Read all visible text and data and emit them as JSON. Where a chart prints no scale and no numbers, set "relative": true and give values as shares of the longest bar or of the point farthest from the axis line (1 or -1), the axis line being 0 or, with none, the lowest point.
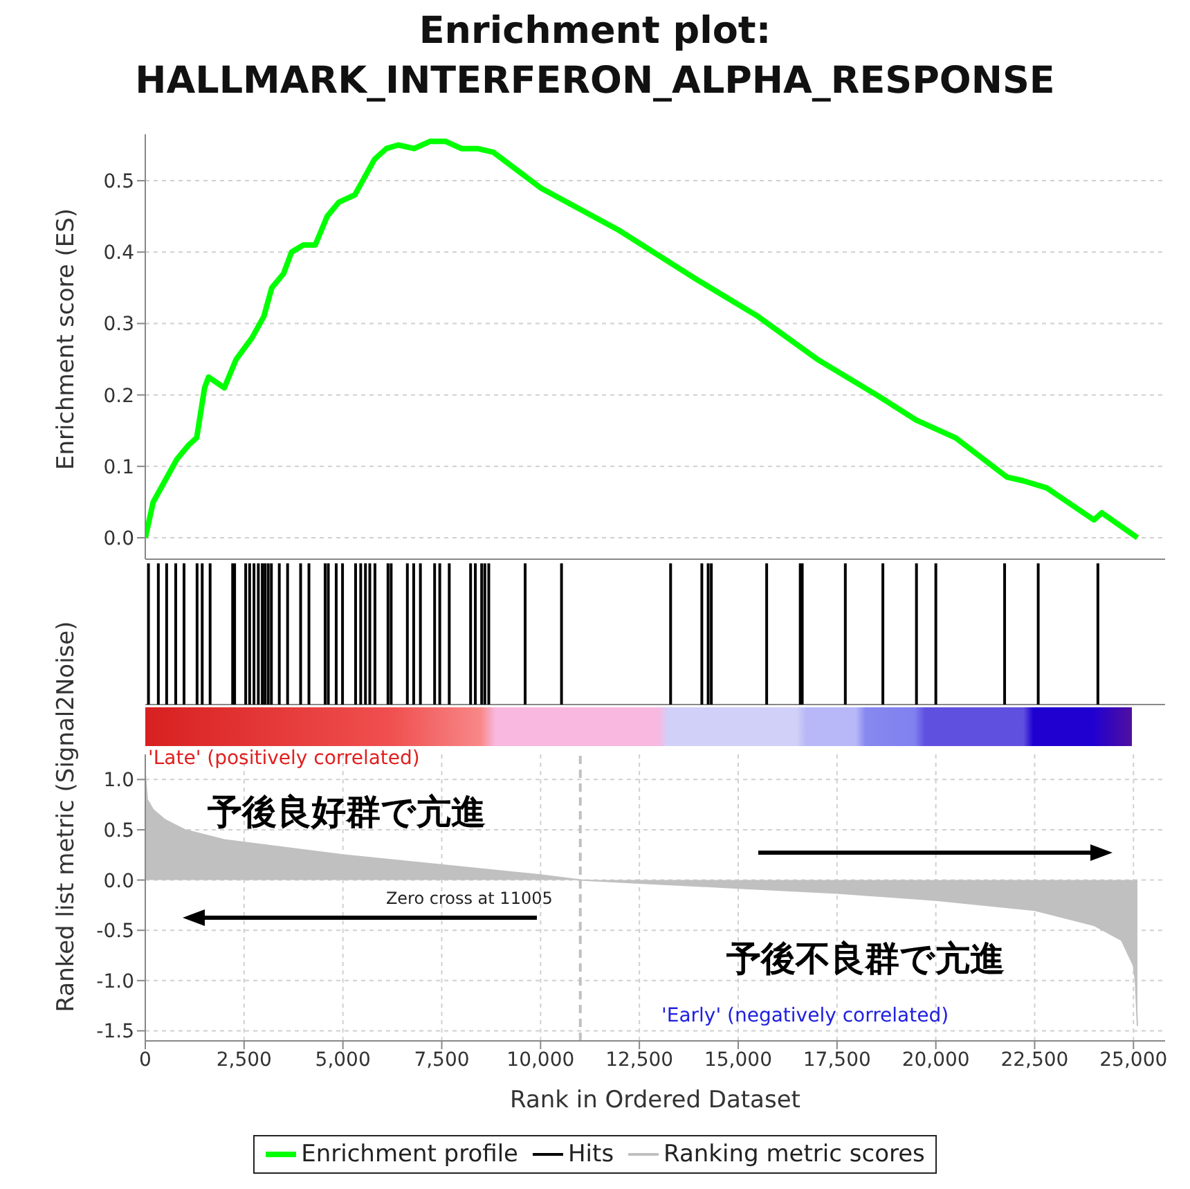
{
  "chart_data": [
    {
      "type": "line",
      "title": "Enrichment plot:\nHALLMARK_INTERFERON_ALPHA_RESPONSE",
      "ylabel": "Enrichment score (ES)",
      "xlim": [
        0,
        25800
      ],
      "xticks": [
        {
          "value": 0,
          "label": null
        },
        {
          "value": 2500,
          "label": null
        },
        {
          "value": 5000,
          "label": null
        },
        {
          "value": 7500,
          "label": null
        },
        {
          "value": 10000,
          "label": null
        },
        {
          "value": 12500,
          "label": null
        },
        {
          "value": 15000,
          "label": null
        },
        {
          "value": 17500,
          "label": null
        },
        {
          "value": 20000,
          "label": null
        },
        {
          "value": 22500,
          "label": null
        },
        {
          "value": 25000,
          "label": null
        }
      ],
      "ylim": [
        -0.03,
        0.565
      ],
      "yticks": [
        {
          "value": 0,
          "label": "0.0"
        },
        0.1,
        0.2,
        0.3,
        0.4,
        0.5
      ],
      "grid": true,
      "tick_labels": "y",
      "series": [
        {
          "name": "Enrichment profile",
          "color": "#00ff00",
          "x": [
            0,
            200,
            500,
            800,
            1100,
            1300,
            1500,
            1600,
            2000,
            2300,
            2700,
            3000,
            3200,
            3500,
            3700,
            4000,
            4300,
            4600,
            4900,
            5300,
            5500,
            5800,
            6100,
            6400,
            6800,
            7200,
            7600,
            8000,
            8400,
            8800,
            10000,
            12000,
            14000,
            15500,
            17000,
            18500,
            19500,
            20500,
            21800,
            22200,
            22800,
            24000,
            24200,
            25100
          ],
          "values": [
            0,
            0.05,
            0.08,
            0.11,
            0.13,
            0.14,
            0.21,
            0.225,
            0.21,
            0.25,
            0.28,
            0.31,
            0.35,
            0.37,
            0.4,
            0.41,
            0.41,
            0.45,
            0.47,
            0.48,
            0.5,
            0.53,
            0.545,
            0.55,
            0.545,
            0.555,
            0.555,
            0.545,
            0.545,
            0.54,
            0.49,
            0.43,
            0.36,
            0.31,
            0.25,
            0.2,
            0.165,
            0.14,
            0.085,
            0.08,
            0.07,
            0.025,
            0.035,
            0
          ]
        }
      ]
    },
    {
      "type": "bar",
      "relative": true,
      "xlim": [
        0,
        25800
      ],
      "tick_labels": false,
      "series": [
        {
          "name": "Hits",
          "color": "#000000",
          "x": [
            80,
            330,
            540,
            770,
            980,
            1310,
            1440,
            1640,
            2210,
            2260,
            2540,
            2640,
            2750,
            2860,
            2960,
            3030,
            3110,
            3190,
            3390,
            3600,
            3930,
            4140,
            4550,
            4630,
            4830,
            4990,
            5320,
            5450,
            5570,
            5680,
            5810,
            6140,
            6220,
            6630,
            6790,
            6960,
            7320,
            7450,
            7690,
            8230,
            8350,
            8510,
            8590,
            8690,
            9610,
            10530,
            13290,
            14080,
            14240,
            14320,
            15720,
            16570,
            16620,
            17710,
            18660,
            19510,
            20000,
            21740,
            22590,
            24100
          ],
          "values": [
            1,
            1,
            1,
            1,
            1,
            1,
            1,
            1,
            1,
            1,
            1,
            1,
            1,
            1,
            1,
            1,
            1,
            1,
            1,
            1,
            1,
            1,
            1,
            1,
            1,
            1,
            1,
            1,
            1,
            1,
            1,
            1,
            1,
            1,
            1,
            1,
            1,
            1,
            1,
            1,
            1,
            1,
            1,
            1,
            1,
            1,
            1,
            1,
            1,
            1,
            1,
            1,
            1,
            1,
            1,
            1,
            1,
            1,
            1,
            1
          ]
        }
      ]
    },
    {
      "type": "area",
      "xlabel": "Rank in Ordered Dataset",
      "ylabel": "Ranked list metric (Signal2Noise)",
      "xlim": [
        0,
        25800
      ],
      "xticks": [
        0,
        {
          "value": 2500,
          "label": "2,500"
        },
        {
          "value": 5000,
          "label": "5,000"
        },
        {
          "value": 7500,
          "label": "7,500"
        },
        {
          "value": 10000,
          "label": "10,000"
        },
        {
          "value": 12500,
          "label": "12,500"
        },
        {
          "value": 15000,
          "label": "15,000"
        },
        {
          "value": 17500,
          "label": "17,500"
        },
        {
          "value": 20000,
          "label": "20,000"
        },
        {
          "value": 22500,
          "label": "22,500"
        },
        {
          "value": 25000,
          "label": "25,000"
        }
      ],
      "ylim": [
        -1.6,
        1.25
      ],
      "yticks": [
        -1.5,
        {
          "value": -1,
          "label": "-1.0"
        },
        -0.5,
        {
          "value": 0,
          "label": "0.0"
        },
        0.5,
        {
          "value": 1,
          "label": "1.0"
        }
      ],
      "grid": true,
      "legend": "bottom",
      "annotations": [
        "'Late' (positively correlated)",
        "予後良好群で亢進",
        "予後不良群で亢進",
        "'Early' (negatively correlated)"
      ],
      "ref_lines": [
        {
          "axis": "x",
          "value": 11005,
          "label": "Zero cross at 11005",
          "color": "#c0c0c0",
          "line_style": "dashed"
        }
      ],
      "series": [
        {
          "name": "Ranking metric scores",
          "color": "#c0c0c0",
          "x": [
            0,
            50,
            200,
            500,
            1000,
            2000,
            3000,
            5000,
            7500,
            10000,
            11005,
            12500,
            15000,
            17500,
            20000,
            22500,
            24000,
            24700,
            25000,
            25050,
            25100
          ],
          "values": [
            1.05,
            0.8,
            0.7,
            0.6,
            0.5,
            0.4,
            0.35,
            0.25,
            0.15,
            0.05,
            0,
            -0.03,
            -0.08,
            -0.13,
            -0.2,
            -0.3,
            -0.45,
            -0.6,
            -0.85,
            -1,
            -1.45
          ]
        }
      ]
    }
  ]
}
